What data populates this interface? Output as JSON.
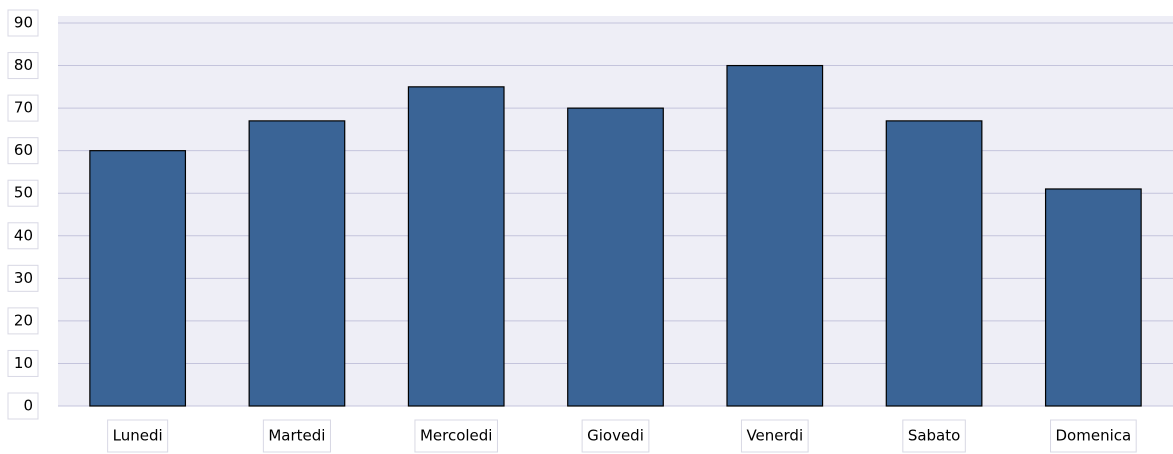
{
  "chart_data": {
    "type": "bar",
    "categories": [
      "Lunedi",
      "Martedi",
      "Mercoledi",
      "Giovedi",
      "Venerdi",
      "Sabato",
      "Domenica"
    ],
    "values": [
      60,
      67,
      75,
      70,
      80,
      67,
      51
    ],
    "color": "#3a6496",
    "ylim": [
      0,
      90
    ],
    "yticks": [
      0,
      10,
      20,
      30,
      40,
      50,
      60,
      70,
      80,
      90
    ],
    "grid": true
  }
}
